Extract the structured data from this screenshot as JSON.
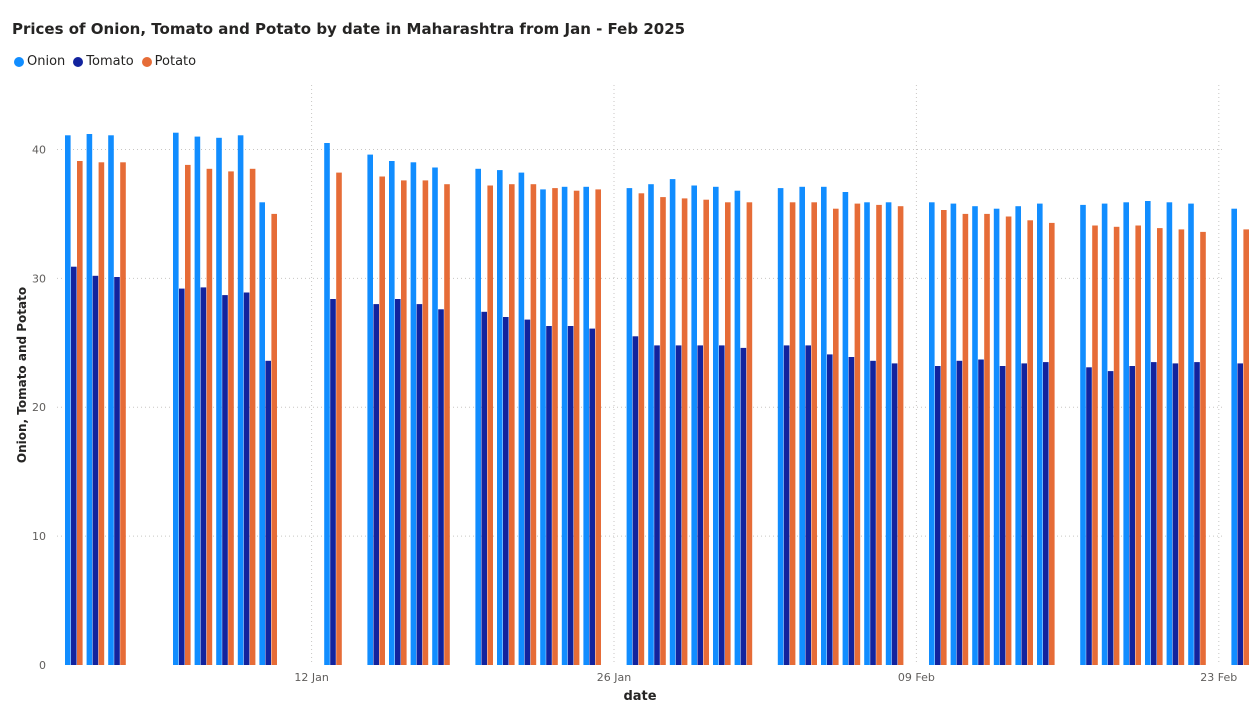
{
  "chart_data": {
    "type": "bar",
    "title": "Prices of Onion, Tomato and Potato by date in Maharashtra from Jan - Feb 2025",
    "xlabel": "date",
    "ylabel": "Onion, Tomato and Potato",
    "ylim": [
      0,
      45
    ],
    "y_ticks": [
      0,
      10,
      20,
      30,
      40
    ],
    "x_ticks": [
      {
        "label": "12 Jan",
        "date": "2025-01-12"
      },
      {
        "label": "26 Jan",
        "date": "2025-01-26"
      },
      {
        "label": "09 Feb",
        "date": "2025-02-09"
      },
      {
        "label": "23 Feb",
        "date": "2025-02-23"
      }
    ],
    "grid": true,
    "legend_position": "top-left",
    "colors": {
      "Onion": "#118DFF",
      "Tomato": "#12239E",
      "Potato": "#E66C37"
    },
    "dates": [
      "2025-01-01",
      "2025-01-02",
      "2025-01-03",
      "2025-01-06",
      "2025-01-07",
      "2025-01-08",
      "2025-01-09",
      "2025-01-10",
      "2025-01-13",
      "2025-01-15",
      "2025-01-16",
      "2025-01-17",
      "2025-01-18",
      "2025-01-20",
      "2025-01-21",
      "2025-01-22",
      "2025-01-23",
      "2025-01-24",
      "2025-01-25",
      "2025-01-27",
      "2025-01-28",
      "2025-01-29",
      "2025-01-30",
      "2025-01-31",
      "2025-02-01",
      "2025-02-03",
      "2025-02-04",
      "2025-02-05",
      "2025-02-06",
      "2025-02-07",
      "2025-02-08",
      "2025-02-10",
      "2025-02-11",
      "2025-02-12",
      "2025-02-13",
      "2025-02-14",
      "2025-02-15",
      "2025-02-17",
      "2025-02-18",
      "2025-02-19",
      "2025-02-20",
      "2025-02-21",
      "2025-02-22",
      "2025-02-24"
    ],
    "series": [
      {
        "name": "Onion",
        "values": [
          41.1,
          41.2,
          41.1,
          41.3,
          41.0,
          40.9,
          41.1,
          35.9,
          40.5,
          39.6,
          39.1,
          39.0,
          38.6,
          38.5,
          38.4,
          38.2,
          36.9,
          37.1,
          37.1,
          37.0,
          37.3,
          37.7,
          37.2,
          37.1,
          36.8,
          37.0,
          37.1,
          37.1,
          36.7,
          35.9,
          35.9,
          35.9,
          35.8,
          35.6,
          35.4,
          35.6,
          35.8,
          35.7,
          35.8,
          35.9,
          36.0,
          35.9,
          35.8,
          35.4
        ]
      },
      {
        "name": "Tomato",
        "values": [
          30.9,
          30.2,
          30.1,
          29.2,
          29.3,
          28.7,
          28.9,
          23.6,
          28.4,
          28.0,
          28.4,
          28.0,
          27.6,
          27.4,
          27.0,
          26.8,
          26.3,
          26.3,
          26.1,
          25.5,
          24.8,
          24.8,
          24.8,
          24.8,
          24.6,
          24.8,
          24.8,
          24.1,
          23.9,
          23.6,
          23.4,
          23.2,
          23.6,
          23.7,
          23.2,
          23.4,
          23.5,
          23.1,
          22.8,
          23.2,
          23.5,
          23.4,
          23.5,
          23.4
        ]
      },
      {
        "name": "Potato",
        "values": [
          39.1,
          39.0,
          39.0,
          38.8,
          38.5,
          38.3,
          38.5,
          35.0,
          38.2,
          37.9,
          37.6,
          37.6,
          37.3,
          37.2,
          37.3,
          37.3,
          37.0,
          36.8,
          36.9,
          36.6,
          36.3,
          36.2,
          36.1,
          35.9,
          35.9,
          35.9,
          35.9,
          35.4,
          35.8,
          35.7,
          35.6,
          35.3,
          35.0,
          35.0,
          34.8,
          34.5,
          34.3,
          34.1,
          34.0,
          34.1,
          33.9,
          33.8,
          33.6,
          33.8
        ]
      }
    ]
  }
}
